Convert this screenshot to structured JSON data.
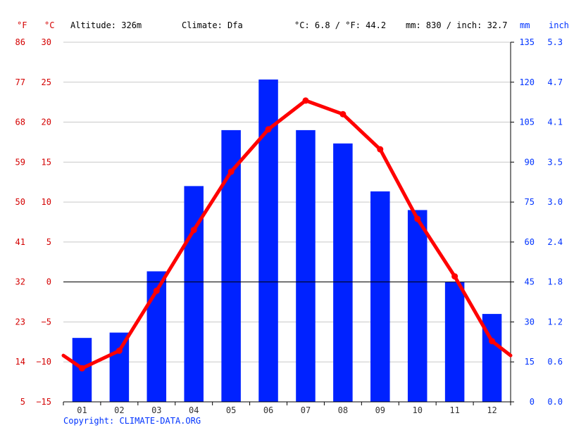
{
  "header": {
    "f_unit": "°F",
    "c_unit": "°C",
    "altitude": "Altitude: 326m",
    "climate": "Climate: Dfa",
    "temp_avg": "°C: 6.8 / °F: 44.2",
    "precip_total": "mm: 830 / inch: 32.7",
    "mm_unit": "mm",
    "inch_unit": "inch"
  },
  "copyright": "Copyright: CLIMATE-DATA.ORG",
  "colors": {
    "temperature": "#ff0000",
    "precipitation": "#0022ff",
    "temp_axis": "#d40000",
    "precip_axis": "#0033ff"
  },
  "chart_data": {
    "type": "bar",
    "categories": [
      "01",
      "02",
      "03",
      "04",
      "05",
      "06",
      "07",
      "08",
      "09",
      "10",
      "11",
      "12"
    ],
    "series": [
      {
        "type": "bar",
        "axis": "right",
        "values": [
          24,
          26,
          49,
          81,
          102,
          121,
          102,
          97,
          79,
          72,
          45,
          33
        ]
      },
      {
        "type": "line",
        "axis": "left",
        "values": [
          -10.8,
          -8.6,
          -1.1,
          6.5,
          13.8,
          19.1,
          22.7,
          21.0,
          16.6,
          7.9,
          0.7,
          -7.4
        ],
        "start_value": -9.2,
        "end_value": -9.2
      }
    ],
    "left_axis": {
      "ylim": [
        -15,
        30
      ],
      "ticks_c": [
        "30",
        "25",
        "20",
        "15",
        "10",
        "5",
        "0",
        "−5",
        "−10",
        "−15"
      ],
      "ticks_f": [
        "86",
        "77",
        "68",
        "59",
        "50",
        "41",
        "32",
        "23",
        "14",
        "5"
      ]
    },
    "right_axis": {
      "ylim": [
        0,
        135
      ],
      "ticks_mm": [
        "135",
        "120",
        "105",
        "90",
        "75",
        "60",
        "45",
        "30",
        "15",
        "0"
      ],
      "ticks_inch": [
        "5.3",
        "4.7",
        "4.1",
        "3.5",
        "3.0",
        "2.4",
        "1.8",
        "1.2",
        "0.6",
        "0.0"
      ]
    },
    "grid": true
  }
}
